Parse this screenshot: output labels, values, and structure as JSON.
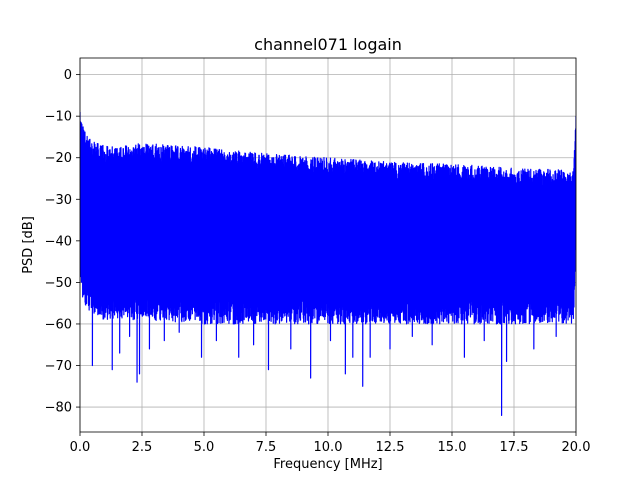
{
  "chart_data": {
    "type": "line",
    "title": "channel071 logain",
    "xlabel": "Frequency [MHz]",
    "ylabel": "PSD [dB]",
    "xlim": [
      0.0,
      20.0
    ],
    "ylim": [
      -86,
      4
    ],
    "xticks": [
      0.0,
      2.5,
      5.0,
      7.5,
      10.0,
      12.5,
      15.0,
      17.5,
      20.0
    ],
    "xtick_labels": [
      "0.0",
      "2.5",
      "5.0",
      "7.5",
      "10.0",
      "12.5",
      "15.0",
      "17.5",
      "20.0"
    ],
    "yticks": [
      0,
      -10,
      -20,
      -30,
      -40,
      -50,
      -60,
      -70,
      -80
    ],
    "ytick_labels": [
      "0",
      "−10",
      "−20",
      "−30",
      "−40",
      "−50",
      "−60",
      "−70",
      "−80"
    ],
    "grid": true,
    "series": [
      {
        "color": "#0000ff",
        "envelope": {
          "x": [
            0.0,
            0.1,
            0.3,
            0.6,
            1.0,
            2.0,
            2.5,
            5.0,
            7.5,
            10.0,
            12.5,
            15.0,
            17.5,
            19.9,
            20.0
          ],
          "upper": [
            -9,
            -12,
            -15,
            -16,
            -17,
            -17,
            -16.5,
            -17.5,
            -19,
            -20,
            -21,
            -21.5,
            -22.5,
            -23,
            -10
          ],
          "lower_base": [
            -46,
            -52,
            -55,
            -56,
            -57,
            -57,
            -57,
            -58,
            -58,
            -58,
            -58,
            -58,
            -58,
            -58,
            -40
          ]
        },
        "dips": [
          {
            "x": 0.5,
            "y": -70
          },
          {
            "x": 1.3,
            "y": -71
          },
          {
            "x": 1.6,
            "y": -67
          },
          {
            "x": 2.0,
            "y": -63
          },
          {
            "x": 2.3,
            "y": -74
          },
          {
            "x": 2.4,
            "y": -72
          },
          {
            "x": 2.8,
            "y": -66
          },
          {
            "x": 3.4,
            "y": -64
          },
          {
            "x": 4.0,
            "y": -62
          },
          {
            "x": 4.9,
            "y": -68
          },
          {
            "x": 5.5,
            "y": -64
          },
          {
            "x": 6.4,
            "y": -68
          },
          {
            "x": 7.0,
            "y": -65
          },
          {
            "x": 7.6,
            "y": -71
          },
          {
            "x": 8.5,
            "y": -66
          },
          {
            "x": 9.3,
            "y": -73
          },
          {
            "x": 10.1,
            "y": -64
          },
          {
            "x": 10.7,
            "y": -72
          },
          {
            "x": 11.0,
            "y": -68
          },
          {
            "x": 11.4,
            "y": -75
          },
          {
            "x": 11.7,
            "y": -68
          },
          {
            "x": 12.5,
            "y": -66
          },
          {
            "x": 13.4,
            "y": -63
          },
          {
            "x": 14.2,
            "y": -65
          },
          {
            "x": 15.5,
            "y": -68
          },
          {
            "x": 16.3,
            "y": -64
          },
          {
            "x": 17.0,
            "y": -82
          },
          {
            "x": 17.2,
            "y": -69
          },
          {
            "x": 18.3,
            "y": -66
          },
          {
            "x": 19.2,
            "y": -63
          }
        ]
      }
    ]
  }
}
